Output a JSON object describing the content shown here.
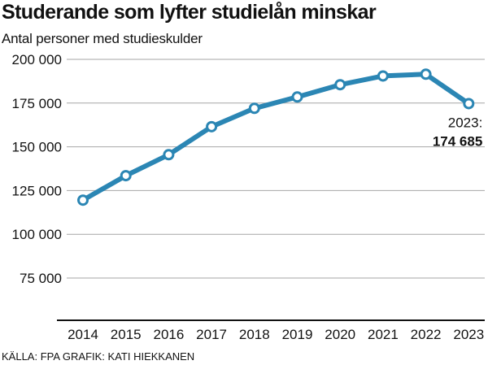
{
  "chart_data": {
    "type": "line",
    "title": "Studerande som lyfter studielån minskar",
    "subtitle": "Antal personer med studieskulder",
    "x": [
      "2014",
      "2015",
      "2016",
      "2017",
      "2018",
      "2019",
      "2020",
      "2021",
      "2022",
      "2023"
    ],
    "series": [
      {
        "values": [
          119500,
          133500,
          145500,
          161500,
          172000,
          178500,
          185500,
          190500,
          191500,
          174685
        ]
      }
    ],
    "ylim": [
      50000,
      200000
    ],
    "yticks": [
      75000,
      100000,
      125000,
      150000,
      175000,
      200000
    ],
    "ytick_labels": [
      "75 000",
      "100 000",
      "125 000",
      "150 000",
      "175 000",
      "200 000"
    ],
    "grid": true,
    "annotation": {
      "year_label": "2023:",
      "value_label": "174 685"
    },
    "source": "KÄLLA: FPA GRAFIK: KATI HIEKKANEN",
    "colors": {
      "line": "#2b86b4",
      "marker_fill": "#ffffff",
      "grid": "#a6a6a6",
      "axis": "#111111"
    }
  }
}
